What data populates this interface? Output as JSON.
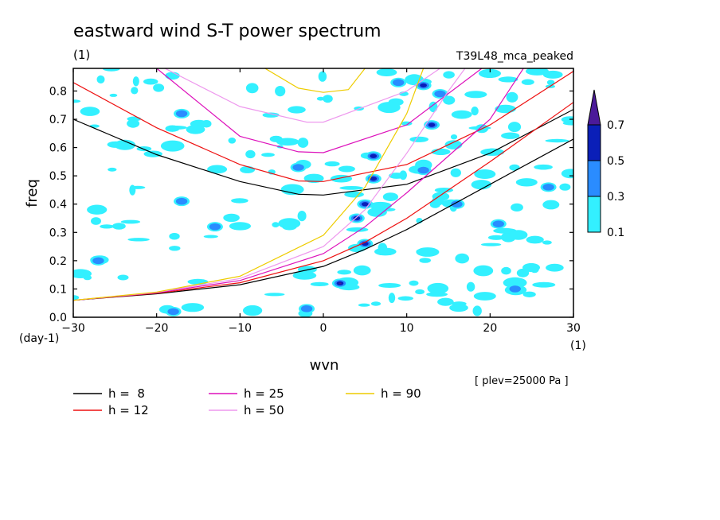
{
  "header": {
    "title": "eastward wind S-T power spectrum",
    "subtitle_left": "(1)",
    "subtitle_right": "T39L48_mca_peaked",
    "note": "[ plev=25000 Pa ]"
  },
  "chart_data": {
    "type": "heatmap",
    "title": "eastward wind S-T power spectrum",
    "xlabel": "wvn",
    "ylabel": "freq",
    "x_unit": "(1)",
    "y_unit": "(day-1)",
    "xlim": [
      -30,
      30
    ],
    "ylim": [
      0,
      0.88
    ],
    "x_ticks": [
      -30,
      -20,
      -10,
      0,
      10,
      20,
      30
    ],
    "y_ticks": [
      0.0,
      0.1,
      0.2,
      0.3,
      0.4,
      0.5,
      0.6,
      0.7,
      0.8
    ],
    "colorbar": {
      "levels": [
        0.1,
        0.3,
        0.5,
        0.7
      ],
      "level_labels": [
        "0.1",
        "0.3",
        "0.5",
        "0.7"
      ],
      "colors": [
        "#33f0ff",
        "#2a8cff",
        "#0a1fb8",
        "#4b1a99"
      ],
      "extend": "max"
    },
    "series": [
      {
        "name": "h =  8",
        "color": "#000000"
      },
      {
        "name": "h = 12",
        "color": "#ee1111"
      },
      {
        "name": "h = 25",
        "color": "#dd11bb"
      },
      {
        "name": "h = 50",
        "color": "#ee99ee"
      },
      {
        "name": "h = 90",
        "color": "#eecc00"
      }
    ],
    "curves": [
      {
        "h": 8,
        "color": "#000000",
        "rossby": [
          [
            -30,
            0.06
          ],
          [
            -20,
            0.083
          ],
          [
            -10,
            0.115
          ],
          [
            0,
            0.18
          ],
          [
            5,
            0.24
          ],
          [
            10,
            0.31
          ],
          [
            20,
            0.47
          ],
          [
            30,
            0.63
          ]
        ],
        "gravity": [
          [
            -30,
            0.7
          ],
          [
            -20,
            0.575
          ],
          [
            -10,
            0.48
          ],
          [
            -3,
            0.435
          ],
          [
            0,
            0.432
          ],
          [
            10,
            0.47
          ],
          [
            20,
            0.58
          ],
          [
            30,
            0.735
          ]
        ]
      },
      {
        "h": 12,
        "color": "#ee1111",
        "rossby": [
          [
            -30,
            0.06
          ],
          [
            -20,
            0.085
          ],
          [
            -10,
            0.122
          ],
          [
            0,
            0.2
          ],
          [
            5,
            0.265
          ],
          [
            10,
            0.35
          ],
          [
            20,
            0.55
          ],
          [
            30,
            0.76
          ]
        ],
        "gravity": [
          [
            -30,
            0.83
          ],
          [
            -20,
            0.67
          ],
          [
            -10,
            0.54
          ],
          [
            -3,
            0.482
          ],
          [
            0,
            0.48
          ],
          [
            10,
            0.54
          ],
          [
            20,
            0.68
          ],
          [
            30,
            0.87
          ]
        ]
      },
      {
        "h": 25,
        "color": "#dd11bb",
        "rossby": [
          [
            -30,
            0.06
          ],
          [
            -20,
            0.087
          ],
          [
            -10,
            0.13
          ],
          [
            0,
            0.225
          ],
          [
            5,
            0.32
          ],
          [
            10,
            0.44
          ],
          [
            20,
            0.7
          ],
          [
            24,
            0.88
          ]
        ],
        "gravity": [
          [
            -20,
            0.88
          ],
          [
            -10,
            0.64
          ],
          [
            -3,
            0.585
          ],
          [
            0,
            0.582
          ],
          [
            10,
            0.68
          ],
          [
            19,
            0.88
          ]
        ]
      },
      {
        "h": 50,
        "color": "#ee99ee",
        "rossby": [
          [
            -30,
            0.06
          ],
          [
            -20,
            0.088
          ],
          [
            -10,
            0.137
          ],
          [
            0,
            0.25
          ],
          [
            5,
            0.38
          ],
          [
            10,
            0.58
          ],
          [
            15,
            0.8
          ],
          [
            17,
            0.88
          ]
        ],
        "gravity": [
          [
            -19,
            0.88
          ],
          [
            -10,
            0.745
          ],
          [
            -2,
            0.69
          ],
          [
            0,
            0.69
          ],
          [
            10,
            0.8
          ],
          [
            14,
            0.88
          ]
        ]
      },
      {
        "h": 90,
        "color": "#eecc00",
        "rossby": [
          [
            -30,
            0.06
          ],
          [
            -20,
            0.089
          ],
          [
            -10,
            0.145
          ],
          [
            0,
            0.29
          ],
          [
            5,
            0.46
          ],
          [
            10,
            0.72
          ],
          [
            12,
            0.88
          ]
        ],
        "gravity": [
          [
            -7,
            0.88
          ],
          [
            -3,
            0.81
          ],
          [
            0,
            0.795
          ],
          [
            3,
            0.805
          ],
          [
            5,
            0.88
          ]
        ]
      }
    ],
    "peaks": [
      {
        "x": 2,
        "y": 0.12,
        "level": 0.7
      },
      {
        "x": 5,
        "y": 0.26,
        "level": 0.5
      },
      {
        "x": 4,
        "y": 0.35,
        "level": 0.5
      },
      {
        "x": 5,
        "y": 0.4,
        "level": 0.5
      },
      {
        "x": 6,
        "y": 0.49,
        "level": 0.5
      },
      {
        "x": 6,
        "y": 0.57,
        "level": 0.5
      },
      {
        "x": 13,
        "y": 0.68,
        "level": 0.5
      },
      {
        "x": 12,
        "y": 0.82,
        "level": 0.5
      },
      {
        "x": 14,
        "y": 0.79,
        "level": 0.3
      },
      {
        "x": 9,
        "y": 0.83,
        "level": 0.3
      },
      {
        "x": -17,
        "y": 0.41,
        "level": 0.3
      },
      {
        "x": -27,
        "y": 0.2,
        "level": 0.3
      },
      {
        "x": -18,
        "y": 0.02,
        "level": 0.3
      },
      {
        "x": -17,
        "y": 0.72,
        "level": 0.3
      },
      {
        "x": -13,
        "y": 0.32,
        "level": 0.3
      },
      {
        "x": 12,
        "y": 0.52,
        "level": 0.3
      },
      {
        "x": 16,
        "y": 0.4,
        "level": 0.3
      },
      {
        "x": 21,
        "y": 0.33,
        "level": 0.3
      },
      {
        "x": 23,
        "y": 0.1,
        "level": 0.3
      },
      {
        "x": 27,
        "y": 0.46,
        "level": 0.3
      },
      {
        "x": -3,
        "y": 0.53,
        "level": 0.3
      },
      {
        "x": -2,
        "y": 0.03,
        "level": 0.3
      }
    ]
  }
}
